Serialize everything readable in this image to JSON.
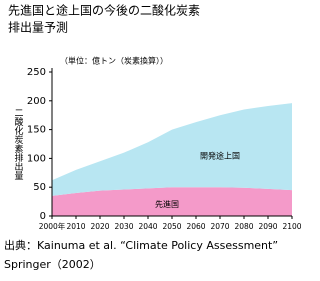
{
  "chart_data": {
    "type": "stacked_area",
    "title": [
      "先進国と途上国の今後の二酸化炭素",
      "排出量予測"
    ],
    "unit_label": "（単位：億トン（炭素換算））",
    "ylabel": "二酸化炭素排出量",
    "x": [
      2000,
      2010,
      2020,
      2030,
      2040,
      2050,
      2060,
      2070,
      2080,
      2090,
      2100
    ],
    "xlim": [
      2000,
      2100
    ],
    "xticks": [
      {
        "value": 2000,
        "label": "2000年"
      },
      2010,
      2020,
      2030,
      2040,
      2050,
      2060,
      2070,
      2080,
      2090,
      2100
    ],
    "ylim": [
      0,
      250
    ],
    "yticks": [
      0,
      50,
      100,
      150,
      200,
      250
    ],
    "grid": false,
    "series": [
      {
        "name": "先進国",
        "color": "#f49ac9",
        "values": [
          35,
          40,
          44,
          46,
          48,
          50,
          50,
          50,
          49,
          47,
          45
        ]
      },
      {
        "name": "開発途上国",
        "color": "#b8e6f2",
        "values": [
          27,
          40,
          51,
          64,
          80,
          100,
          113,
          125,
          136,
          144,
          151
        ]
      }
    ],
    "source": [
      "出典：Kainuma et al. “Climate Policy Assessment”",
      "Springer（2002）"
    ]
  }
}
